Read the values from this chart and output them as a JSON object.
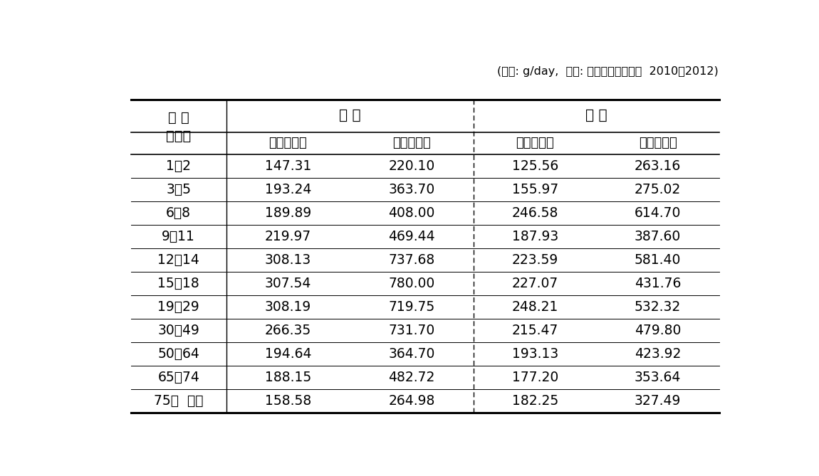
{
  "caption": "(단위: g/day,  출처: 국민건강영양조사  2010～2012)",
  "age_header_line1": "연 령",
  "age_header_line2": "（세）",
  "male_header": "남 성",
  "female_header": "여 성",
  "sub_headers": [
    "평균섭취량",
    "극단섭취량",
    "평균섭취량",
    "극단섭취량"
  ],
  "age_groups": [
    "1～2",
    "3～5",
    "6～8",
    "9～11",
    "12～14",
    "15～18",
    "19～29",
    "30～49",
    "50～64",
    "65～74",
    "75세  이상"
  ],
  "male_avg": [
    147.31,
    193.24,
    189.89,
    219.97,
    308.13,
    307.54,
    308.19,
    266.35,
    194.64,
    188.15,
    158.58
  ],
  "male_ext": [
    220.1,
    363.7,
    408.0,
    469.44,
    737.68,
    780.0,
    719.75,
    731.7,
    364.7,
    482.72,
    264.98
  ],
  "female_avg": [
    125.56,
    155.97,
    246.58,
    187.93,
    223.59,
    227.07,
    248.21,
    215.47,
    193.13,
    177.2,
    182.25
  ],
  "female_ext": [
    263.16,
    275.02,
    614.7,
    387.6,
    581.4,
    431.76,
    532.32,
    479.8,
    423.92,
    353.64,
    327.49
  ],
  "bg_color": "#ffffff",
  "text_color": "#000000",
  "caption_text": "(단위: g/day,  출처: 국민건강영양조사  2010～2012)"
}
